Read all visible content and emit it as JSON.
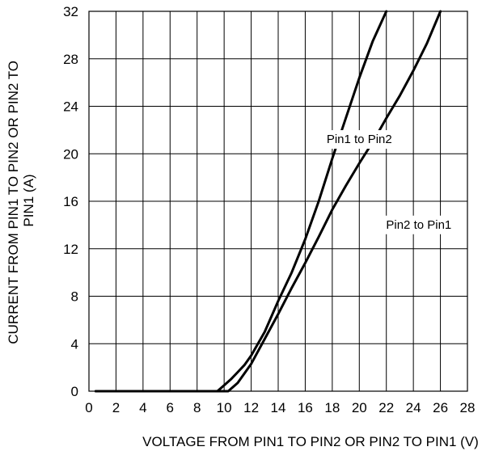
{
  "chart_data": {
    "type": "line",
    "title": "",
    "xlabel": "VOLTAGE FROM PIN1 TO PIN2 OR PIN2 TO PIN1 (V)",
    "ylabel_lines": [
      "CURRENT FROM PIN1 TO PIN2 OR PIN2 TO",
      "PIN1 (A)"
    ],
    "xlim": [
      0,
      28
    ],
    "ylim": [
      0,
      32
    ],
    "x_ticks": [
      "0",
      "2",
      "4",
      "6",
      "8",
      "10",
      "12",
      "14",
      "16",
      "18",
      "20",
      "22",
      "24",
      "26",
      "28"
    ],
    "y_ticks": [
      "0",
      "4",
      "8",
      "12",
      "16",
      "20",
      "24",
      "28",
      "32"
    ],
    "grid": true,
    "series": [
      {
        "name": "Pin1 to Pin2",
        "x": [
          0.5,
          9.5,
          10.0,
          10.5,
          11.0,
          11.5,
          12.0,
          13.0,
          14.0,
          15.0,
          16.0,
          17.0,
          18.0,
          19.0,
          20.0,
          21.0,
          22.0
        ],
        "y": [
          0,
          0,
          0.5,
          1.0,
          1.6,
          2.2,
          3.0,
          5.0,
          7.6,
          10.0,
          12.8,
          16.0,
          19.6,
          23.0,
          26.4,
          29.5,
          32.0
        ]
      },
      {
        "name": "Pin2 to Pin1",
        "x": [
          0.5,
          10.3,
          10.6,
          11.0,
          12.0,
          13.0,
          14.0,
          15.0,
          16.0,
          17.0,
          18.0,
          19.0,
          20.0,
          21.0,
          22.0,
          23.0,
          24.0,
          25.0,
          26.0
        ],
        "y": [
          0,
          0,
          0.3,
          0.7,
          2.3,
          4.4,
          6.5,
          8.7,
          10.8,
          13.0,
          15.3,
          17.3,
          19.2,
          21.0,
          23.0,
          24.9,
          27.0,
          29.3,
          32.0
        ]
      }
    ],
    "annotations": [
      {
        "text": "Pin1 to Pin2",
        "x": 20.0,
        "y": 20.9
      },
      {
        "text": "Pin2 to Pin1",
        "x": 24.4,
        "y": 13.7
      }
    ]
  }
}
